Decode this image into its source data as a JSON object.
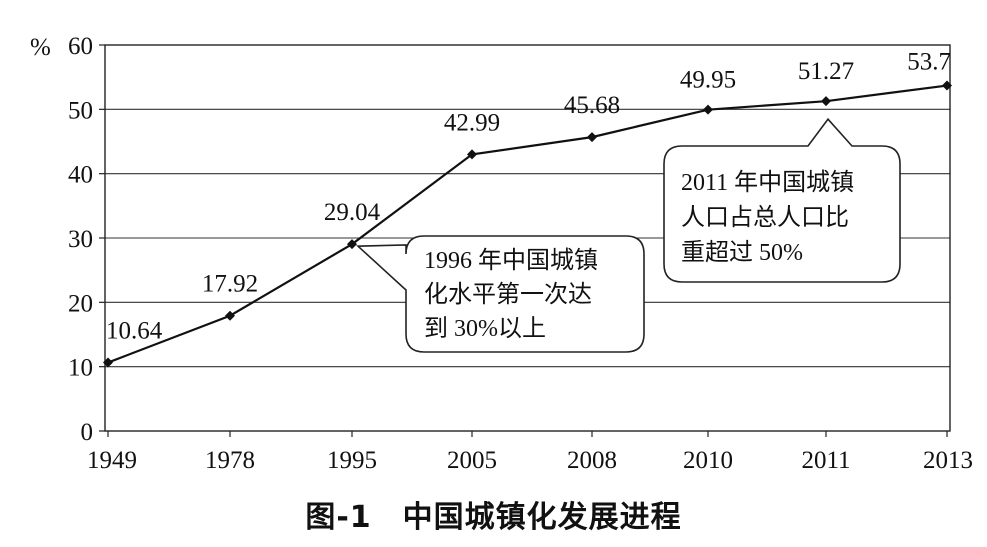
{
  "chart_data": {
    "type": "line",
    "ylabel": "%",
    "ylim": [
      0,
      60
    ],
    "yticks": [
      0,
      10,
      20,
      30,
      40,
      50,
      60
    ],
    "grid": true,
    "categories": [
      "1949",
      "1978",
      "1995",
      "2005",
      "2008",
      "2010",
      "2011",
      "2013"
    ],
    "series": [
      {
        "values": [
          10.64,
          17.92,
          29.04,
          42.99,
          45.68,
          49.95,
          51.27,
          53.7
        ]
      }
    ],
    "data_labels": [
      "10.64",
      "17.92",
      "29.04",
      "42.99",
      "45.68",
      "49.95",
      "51.27",
      "53.7"
    ],
    "annotations": [
      {
        "target": "1995",
        "lines": [
          "1996 年中国城镇",
          "化水平第一次达",
          "到 30%以上"
        ]
      },
      {
        "target": "2011",
        "lines": [
          "2011 年中国城镇",
          "人口占总人口比",
          "重超过 50%"
        ]
      }
    ],
    "caption": "图-1　中国城镇化发展进程"
  }
}
